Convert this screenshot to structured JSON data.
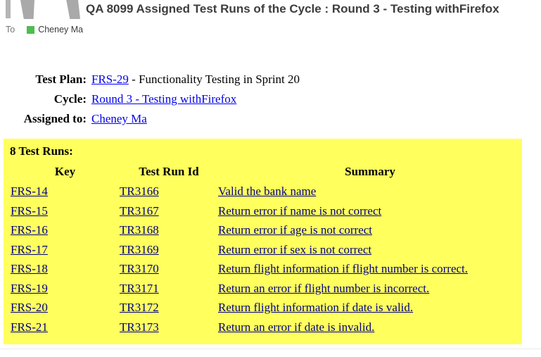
{
  "colors": {
    "subject_text": "#3d3d3d",
    "muted_text": "#767676",
    "presence_green": "#4dbe4f",
    "link_blue": "#0000ee",
    "link_navy": "#000080",
    "highlight_yellow": "#ffff5e"
  },
  "header": {
    "subject": "QA 8099 Assigned Test Runs of the Cycle : Round 3 - Testing withFirefox",
    "to_label": "To",
    "recipient": "Cheney Ma"
  },
  "details": {
    "rows": [
      {
        "label": "Test Plan:",
        "link": "FRS-29",
        "suffix": " - Functionality Testing in Sprint 20"
      },
      {
        "label": "Cycle:",
        "link": "Round 3 - Testing withFirefox",
        "suffix": ""
      },
      {
        "label": "Assigned to:",
        "link": "Cheney Ma",
        "suffix": ""
      }
    ]
  },
  "test_runs": {
    "title": "8 Test Runs:",
    "columns": [
      "Key",
      "Test Run Id",
      "Summary"
    ],
    "rows": [
      {
        "key": "FRS-14",
        "test_run_id": "TR3166",
        "summary": "Valid the bank name"
      },
      {
        "key": "FRS-15",
        "test_run_id": "TR3167",
        "summary": "Return error if name is not correct"
      },
      {
        "key": "FRS-16",
        "test_run_id": "TR3168",
        "summary": "Return error if age is not correct"
      },
      {
        "key": "FRS-17",
        "test_run_id": "TR3169",
        "summary": "Return error if sex is not correct"
      },
      {
        "key": "FRS-18",
        "test_run_id": "TR3170",
        "summary": "Return flight information if flight number is correct."
      },
      {
        "key": "FRS-19",
        "test_run_id": "TR3171",
        "summary": "Return an error if flight number is incorrect."
      },
      {
        "key": "FRS-20",
        "test_run_id": "TR3172",
        "summary": "Return flight information if date is valid."
      },
      {
        "key": "FRS-21",
        "test_run_id": "TR3173",
        "summary": "Return an error if date is invalid."
      }
    ]
  }
}
